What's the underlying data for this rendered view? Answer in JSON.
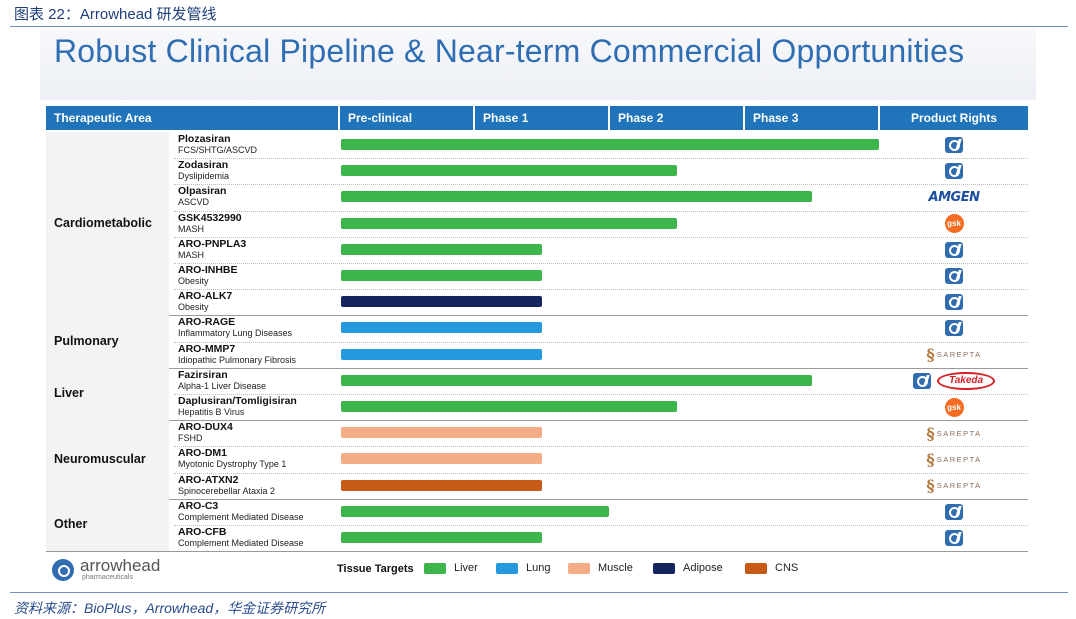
{
  "caption": "图表 22：Arrowhead 研发管线",
  "source": "资料来源：BioPlus，Arrowhead，华金证券研究所",
  "title": "Robust Clinical Pipeline & Near-term Commercial Opportunities",
  "headers": [
    "Therapeutic Area",
    "Pre-clinical",
    "Phase 1",
    "Phase 2",
    "Phase 3",
    "Product Rights"
  ],
  "company": {
    "name": "arrowhead",
    "sub": "pharmaceuticals"
  },
  "colors": {
    "Liver": "#3cb54a",
    "Lung": "#2599dd",
    "Muscle": "#f4ac86",
    "Adipose": "#15265f",
    "CNS": "#c85a17",
    "header": "#1f74ba"
  },
  "chart_data": {
    "type": "bar",
    "orientation": "horizontal",
    "title": "Robust Clinical Pipeline & Near-term Commercial Opportunities",
    "stages": [
      "Pre-clinical",
      "Phase 1",
      "Phase 2",
      "Phase 3"
    ],
    "stage_scale": "0 = start of Pre-clinical, 4 = end of Phase 3",
    "legend_title": "Tissue Targets",
    "legend": [
      "Liver",
      "Lung",
      "Muscle",
      "Adipose",
      "CNS"
    ],
    "groups": [
      {
        "area": "Cardiometabolic",
        "drugs": [
          {
            "name": "Plozasiran",
            "indication": "FCS/SHTG/ASCVD",
            "progress": 4.0,
            "tissue": "Liver",
            "rights": [
              "arrowhead"
            ]
          },
          {
            "name": "Zodasiran",
            "indication": "Dyslipidemia",
            "progress": 2.5,
            "tissue": "Liver",
            "rights": [
              "arrowhead"
            ]
          },
          {
            "name": "Olpasiran",
            "indication": "ASCVD",
            "progress": 3.5,
            "tissue": "Liver",
            "rights": [
              "AMGEN"
            ]
          },
          {
            "name": "GSK4532990",
            "indication": "MASH",
            "progress": 2.5,
            "tissue": "Liver",
            "rights": [
              "gsk"
            ]
          },
          {
            "name": "ARO-PNPLA3",
            "indication": "MASH",
            "progress": 1.5,
            "tissue": "Liver",
            "rights": [
              "arrowhead"
            ]
          },
          {
            "name": "ARO-INHBE",
            "indication": "Obesity",
            "progress": 1.5,
            "tissue": "Liver",
            "rights": [
              "arrowhead"
            ]
          },
          {
            "name": "ARO-ALK7",
            "indication": "Obesity",
            "progress": 1.5,
            "tissue": "Adipose",
            "rights": [
              "arrowhead"
            ]
          }
        ]
      },
      {
        "area": "Pulmonary",
        "drugs": [
          {
            "name": "ARO-RAGE",
            "indication": "Inflammatory Lung Diseases",
            "progress": 1.5,
            "tissue": "Lung",
            "rights": [
              "arrowhead"
            ]
          },
          {
            "name": "ARO-MMP7",
            "indication": "Idiopathic Pulmonary Fibrosis",
            "progress": 1.5,
            "tissue": "Lung",
            "rights": [
              "SAREPTA"
            ]
          }
        ]
      },
      {
        "area": "Liver",
        "drugs": [
          {
            "name": "Fazirsiran",
            "indication": "Alpha-1 Liver Disease",
            "progress": 3.5,
            "tissue": "Liver",
            "rights": [
              "arrowhead",
              "Takeda"
            ]
          },
          {
            "name": "Daplusiran/Tomligisiran",
            "indication": "Hepatitis B Virus",
            "progress": 2.5,
            "tissue": "Liver",
            "rights": [
              "gsk"
            ]
          }
        ]
      },
      {
        "area": "Neuromuscular",
        "drugs": [
          {
            "name": "ARO-DUX4",
            "indication": "FSHD",
            "progress": 1.5,
            "tissue": "Muscle",
            "rights": [
              "SAREPTA"
            ]
          },
          {
            "name": "ARO-DM1",
            "indication": "Myotonic Dystrophy Type 1",
            "progress": 1.5,
            "tissue": "Muscle",
            "rights": [
              "SAREPTA"
            ]
          },
          {
            "name": "ARO-ATXN2",
            "indication": "Spinocerebellar Ataxia 2",
            "progress": 1.5,
            "tissue": "CNS",
            "rights": [
              "SAREPTA"
            ]
          }
        ]
      },
      {
        "area": "Other",
        "drugs": [
          {
            "name": "ARO-C3",
            "indication": "Complement Mediated Disease",
            "progress": 2.0,
            "tissue": "Liver",
            "rights": [
              "arrowhead"
            ]
          },
          {
            "name": "ARO-CFB",
            "indication": "Complement Mediated Disease",
            "progress": 1.5,
            "tissue": "Liver",
            "rights": [
              "arrowhead"
            ]
          }
        ]
      }
    ]
  }
}
